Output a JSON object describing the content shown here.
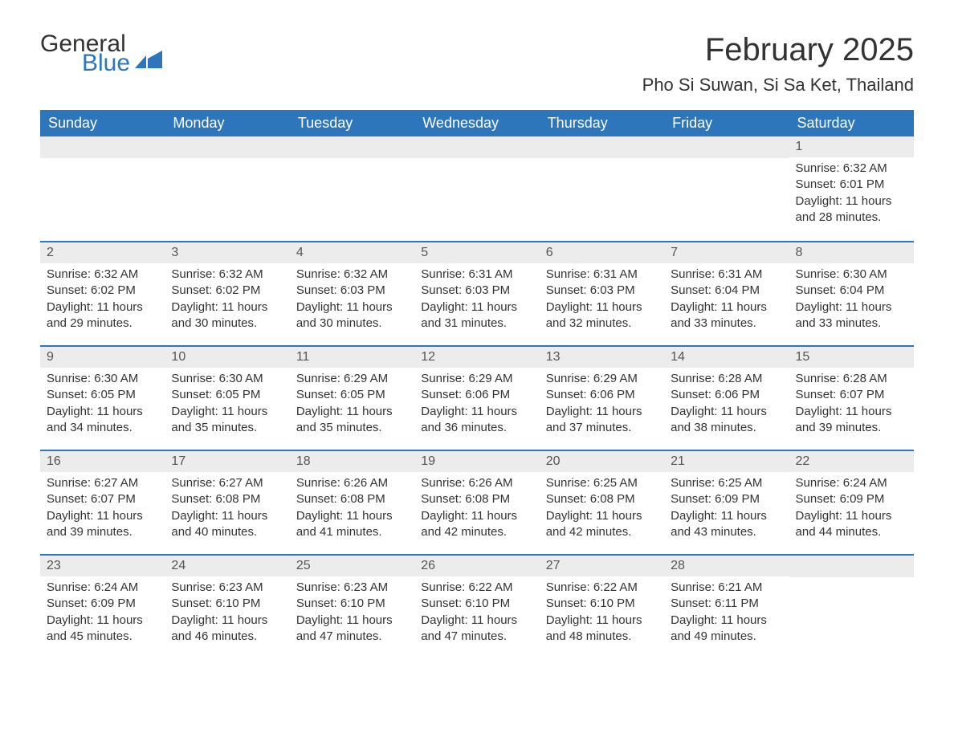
{
  "logo": {
    "general": "General",
    "blue": "Blue"
  },
  "title": "February 2025",
  "location": "Pho Si Suwan, Si Sa Ket, Thailand",
  "colors": {
    "header_bg": "#2d76bb",
    "header_text": "#ffffff",
    "daynum_bg": "#ececec",
    "body_text": "#333333",
    "logo_blue": "#2d76bb"
  },
  "daysOfWeek": [
    "Sunday",
    "Monday",
    "Tuesday",
    "Wednesday",
    "Thursday",
    "Friday",
    "Saturday"
  ],
  "weeks": [
    [
      null,
      null,
      null,
      null,
      null,
      null,
      {
        "n": "1",
        "sr": "Sunrise: 6:32 AM",
        "ss": "Sunset: 6:01 PM",
        "dl1": "Daylight: 11 hours",
        "dl2": "and 28 minutes."
      }
    ],
    [
      {
        "n": "2",
        "sr": "Sunrise: 6:32 AM",
        "ss": "Sunset: 6:02 PM",
        "dl1": "Daylight: 11 hours",
        "dl2": "and 29 minutes."
      },
      {
        "n": "3",
        "sr": "Sunrise: 6:32 AM",
        "ss": "Sunset: 6:02 PM",
        "dl1": "Daylight: 11 hours",
        "dl2": "and 30 minutes."
      },
      {
        "n": "4",
        "sr": "Sunrise: 6:32 AM",
        "ss": "Sunset: 6:03 PM",
        "dl1": "Daylight: 11 hours",
        "dl2": "and 30 minutes."
      },
      {
        "n": "5",
        "sr": "Sunrise: 6:31 AM",
        "ss": "Sunset: 6:03 PM",
        "dl1": "Daylight: 11 hours",
        "dl2": "and 31 minutes."
      },
      {
        "n": "6",
        "sr": "Sunrise: 6:31 AM",
        "ss": "Sunset: 6:03 PM",
        "dl1": "Daylight: 11 hours",
        "dl2": "and 32 minutes."
      },
      {
        "n": "7",
        "sr": "Sunrise: 6:31 AM",
        "ss": "Sunset: 6:04 PM",
        "dl1": "Daylight: 11 hours",
        "dl2": "and 33 minutes."
      },
      {
        "n": "8",
        "sr": "Sunrise: 6:30 AM",
        "ss": "Sunset: 6:04 PM",
        "dl1": "Daylight: 11 hours",
        "dl2": "and 33 minutes."
      }
    ],
    [
      {
        "n": "9",
        "sr": "Sunrise: 6:30 AM",
        "ss": "Sunset: 6:05 PM",
        "dl1": "Daylight: 11 hours",
        "dl2": "and 34 minutes."
      },
      {
        "n": "10",
        "sr": "Sunrise: 6:30 AM",
        "ss": "Sunset: 6:05 PM",
        "dl1": "Daylight: 11 hours",
        "dl2": "and 35 minutes."
      },
      {
        "n": "11",
        "sr": "Sunrise: 6:29 AM",
        "ss": "Sunset: 6:05 PM",
        "dl1": "Daylight: 11 hours",
        "dl2": "and 35 minutes."
      },
      {
        "n": "12",
        "sr": "Sunrise: 6:29 AM",
        "ss": "Sunset: 6:06 PM",
        "dl1": "Daylight: 11 hours",
        "dl2": "and 36 minutes."
      },
      {
        "n": "13",
        "sr": "Sunrise: 6:29 AM",
        "ss": "Sunset: 6:06 PM",
        "dl1": "Daylight: 11 hours",
        "dl2": "and 37 minutes."
      },
      {
        "n": "14",
        "sr": "Sunrise: 6:28 AM",
        "ss": "Sunset: 6:06 PM",
        "dl1": "Daylight: 11 hours",
        "dl2": "and 38 minutes."
      },
      {
        "n": "15",
        "sr": "Sunrise: 6:28 AM",
        "ss": "Sunset: 6:07 PM",
        "dl1": "Daylight: 11 hours",
        "dl2": "and 39 minutes."
      }
    ],
    [
      {
        "n": "16",
        "sr": "Sunrise: 6:27 AM",
        "ss": "Sunset: 6:07 PM",
        "dl1": "Daylight: 11 hours",
        "dl2": "and 39 minutes."
      },
      {
        "n": "17",
        "sr": "Sunrise: 6:27 AM",
        "ss": "Sunset: 6:08 PM",
        "dl1": "Daylight: 11 hours",
        "dl2": "and 40 minutes."
      },
      {
        "n": "18",
        "sr": "Sunrise: 6:26 AM",
        "ss": "Sunset: 6:08 PM",
        "dl1": "Daylight: 11 hours",
        "dl2": "and 41 minutes."
      },
      {
        "n": "19",
        "sr": "Sunrise: 6:26 AM",
        "ss": "Sunset: 6:08 PM",
        "dl1": "Daylight: 11 hours",
        "dl2": "and 42 minutes."
      },
      {
        "n": "20",
        "sr": "Sunrise: 6:25 AM",
        "ss": "Sunset: 6:08 PM",
        "dl1": "Daylight: 11 hours",
        "dl2": "and 42 minutes."
      },
      {
        "n": "21",
        "sr": "Sunrise: 6:25 AM",
        "ss": "Sunset: 6:09 PM",
        "dl1": "Daylight: 11 hours",
        "dl2": "and 43 minutes."
      },
      {
        "n": "22",
        "sr": "Sunrise: 6:24 AM",
        "ss": "Sunset: 6:09 PM",
        "dl1": "Daylight: 11 hours",
        "dl2": "and 44 minutes."
      }
    ],
    [
      {
        "n": "23",
        "sr": "Sunrise: 6:24 AM",
        "ss": "Sunset: 6:09 PM",
        "dl1": "Daylight: 11 hours",
        "dl2": "and 45 minutes."
      },
      {
        "n": "24",
        "sr": "Sunrise: 6:23 AM",
        "ss": "Sunset: 6:10 PM",
        "dl1": "Daylight: 11 hours",
        "dl2": "and 46 minutes."
      },
      {
        "n": "25",
        "sr": "Sunrise: 6:23 AM",
        "ss": "Sunset: 6:10 PM",
        "dl1": "Daylight: 11 hours",
        "dl2": "and 47 minutes."
      },
      {
        "n": "26",
        "sr": "Sunrise: 6:22 AM",
        "ss": "Sunset: 6:10 PM",
        "dl1": "Daylight: 11 hours",
        "dl2": "and 47 minutes."
      },
      {
        "n": "27",
        "sr": "Sunrise: 6:22 AM",
        "ss": "Sunset: 6:10 PM",
        "dl1": "Daylight: 11 hours",
        "dl2": "and 48 minutes."
      },
      {
        "n": "28",
        "sr": "Sunrise: 6:21 AM",
        "ss": "Sunset: 6:11 PM",
        "dl1": "Daylight: 11 hours",
        "dl2": "and 49 minutes."
      },
      null
    ]
  ]
}
